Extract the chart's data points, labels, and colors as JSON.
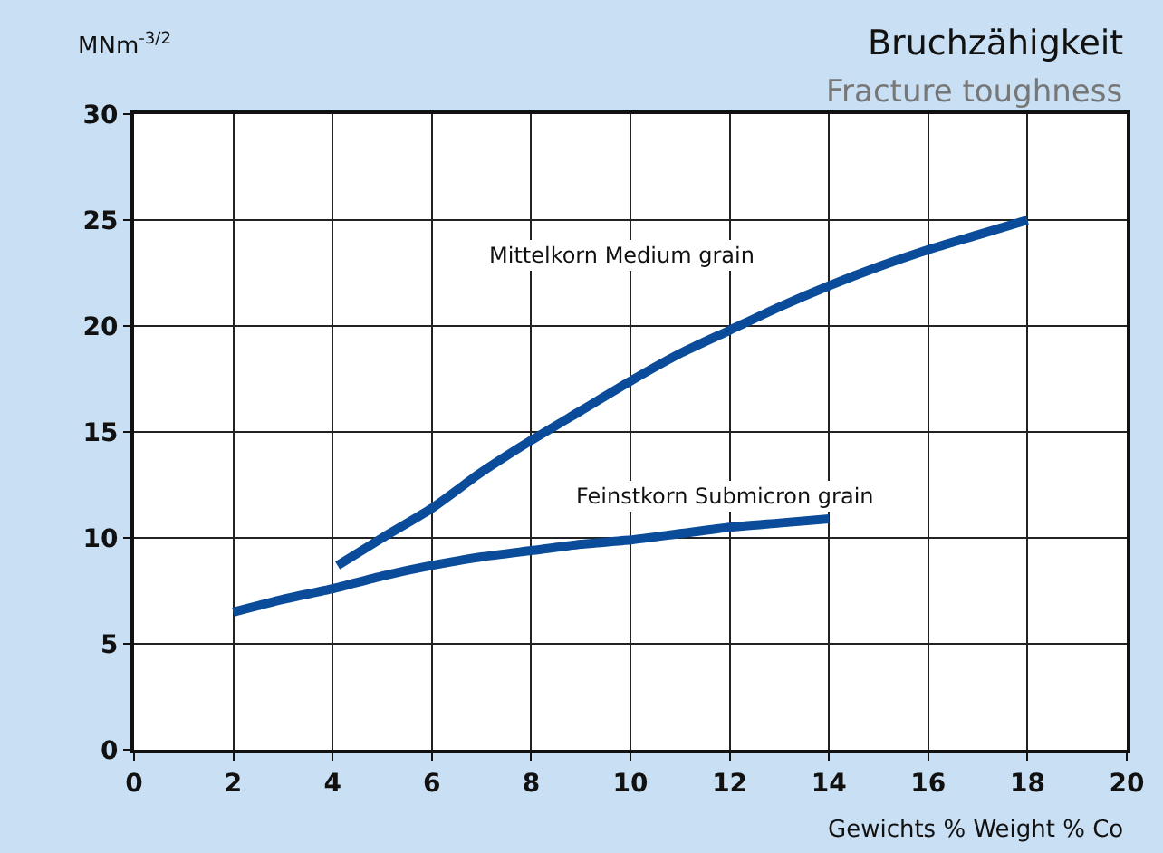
{
  "chart_data": {
    "type": "line",
    "title": "Bruchzähigkeit",
    "subtitle": "Fracture toughness",
    "ylabel": "MNm$^{-3/2}$",
    "xlabel": "Gewichts % Weight % Co",
    "series": [
      {
        "name": "Mittelkorn Medium grain",
        "color": "#0a4c9a",
        "x": [
          4.1,
          5,
          6,
          7,
          8,
          9,
          10,
          11,
          12,
          13,
          14,
          15,
          16,
          17,
          18
        ],
        "values": [
          8.7,
          10,
          11.4,
          13.1,
          14.6,
          16,
          17.4,
          18.7,
          19.8,
          20.9,
          21.9,
          22.8,
          23.6,
          24.3,
          25.0
        ]
      },
      {
        "name": "Feinstkorn Submicron grain",
        "color": "#0a4c9a",
        "x": [
          2,
          3,
          4,
          5,
          6,
          7,
          8,
          9,
          10,
          11,
          12,
          13,
          14
        ],
        "values": [
          6.5,
          7.1,
          7.6,
          8.2,
          8.7,
          9.1,
          9.4,
          9.7,
          9.9,
          10.2,
          10.5,
          10.7,
          10.9
        ]
      }
    ],
    "xlim": [
      0,
      20
    ],
    "xticks": [
      0,
      2,
      4,
      6,
      8,
      10,
      12,
      14,
      16,
      18,
      20
    ],
    "ylim": [
      0,
      30
    ],
    "yticks": [
      0,
      5,
      10,
      15,
      20,
      25,
      30
    ],
    "grid": true,
    "legend": false,
    "line_style": "solid",
    "marker": "none"
  }
}
